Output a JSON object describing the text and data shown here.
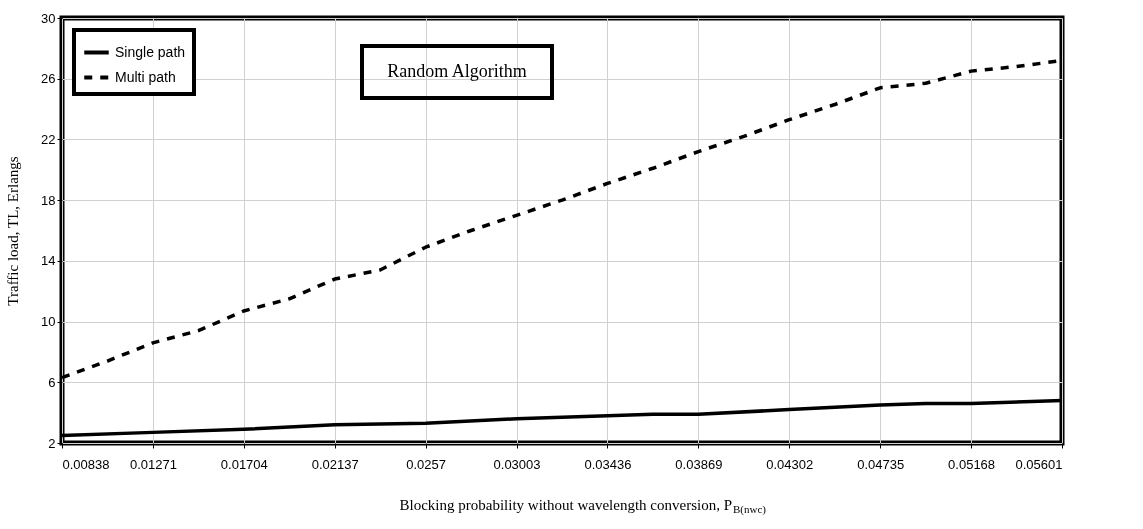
{
  "chart_data": {
    "type": "line",
    "annotations": [
      "Random Algorithm"
    ],
    "xlabel": "Blocking probability without wavelength conversion, P$_{B(nwc)}$",
    "ylabel": "Traffic load, TL, Erlangs",
    "series": [
      {
        "name": "Single path",
        "color": "#000000",
        "line_style": "solid",
        "x": [
          0.00838,
          0.01271,
          0.01704,
          0.02137,
          0.0257,
          0.03003,
          0.03436,
          0.036525,
          0.03869,
          0.04302,
          0.04735,
          0.049515,
          0.05168,
          0.05601
        ],
        "values": [
          2.5,
          2.7,
          2.9,
          3.2,
          3.3,
          3.6,
          3.8,
          3.9,
          3.9,
          4.2,
          4.5,
          4.6,
          4.6,
          4.8
        ]
      },
      {
        "name": "Multi path",
        "color": "#000000",
        "line_style": "dashed",
        "x": [
          0.00838,
          0.010545,
          0.01271,
          0.014875,
          0.01704,
          0.019205,
          0.02137,
          0.023535,
          0.0257,
          0.027865,
          0.03003,
          0.032195,
          0.03436,
          0.036525,
          0.03869,
          0.040855,
          0.04302,
          0.045185,
          0.04735,
          0.049515,
          0.05168,
          0.053845,
          0.05601
        ],
        "values": [
          6.3,
          7.4,
          8.6,
          9.4,
          10.7,
          11.5,
          12.8,
          13.4,
          14.9,
          16.0,
          17.0,
          18.0,
          19.1,
          20.1,
          21.2,
          22.2,
          23.3,
          24.3,
          25.4,
          25.7,
          26.5,
          26.8,
          27.2
        ]
      }
    ],
    "xlim": [
      0.00838,
      0.05601
    ],
    "xticks": [
      0.00838,
      0.01271,
      0.01704,
      0.02137,
      0.0257,
      0.03003,
      0.03436,
      0.03869,
      0.04302,
      0.04735,
      0.05168,
      0.05601
    ],
    "ylim": [
      2,
      30
    ],
    "yticks": [
      2,
      6,
      10,
      14,
      18,
      22,
      26,
      30
    ],
    "grid": true,
    "legend": "top left"
  }
}
